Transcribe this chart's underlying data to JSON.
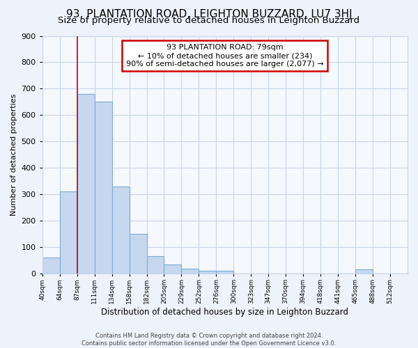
{
  "title": "93, PLANTATION ROAD, LEIGHTON BUZZARD, LU7 3HJ",
  "subtitle": "Size of property relative to detached houses in Leighton Buzzard",
  "xlabel": "Distribution of detached houses by size in Leighton Buzzard",
  "ylabel": "Number of detached properties",
  "footer_line1": "Contains HM Land Registry data © Crown copyright and database right 2024.",
  "footer_line2": "Contains public sector information licensed under the Open Government Licence v3.0.",
  "bin_labels": [
    "40sqm",
    "64sqm",
    "87sqm",
    "111sqm",
    "134sqm",
    "158sqm",
    "182sqm",
    "205sqm",
    "229sqm",
    "252sqm",
    "276sqm",
    "300sqm",
    "323sqm",
    "347sqm",
    "370sqm",
    "394sqm",
    "418sqm",
    "441sqm",
    "465sqm",
    "488sqm",
    "512sqm"
  ],
  "bar_values": [
    60,
    310,
    680,
    650,
    330,
    150,
    65,
    35,
    20,
    10,
    10,
    0,
    0,
    0,
    0,
    0,
    0,
    0,
    15,
    0,
    0
  ],
  "bar_color": "#c5d8f0",
  "bar_edge_color": "#7bacd4",
  "grid_color": "#c8d4e8",
  "annotation_text_line1": "93 PLANTATION ROAD: 79sqm",
  "annotation_text_line2": "← 10% of detached houses are smaller (234)",
  "annotation_text_line3": "90% of semi-detached houses are larger (2,077) →",
  "annotation_box_color": "#ffffff",
  "annotation_box_edge": "#cc0000",
  "vline_color": "#cc0000",
  "vline_x": 2.0,
  "ylim": [
    0,
    900
  ],
  "yticks": [
    0,
    100,
    200,
    300,
    400,
    500,
    600,
    700,
    800,
    900
  ],
  "plot_bg": "#f5f8fd",
  "fig_bg": "#eef2fa",
  "title_fontsize": 11,
  "subtitle_fontsize": 9.5
}
